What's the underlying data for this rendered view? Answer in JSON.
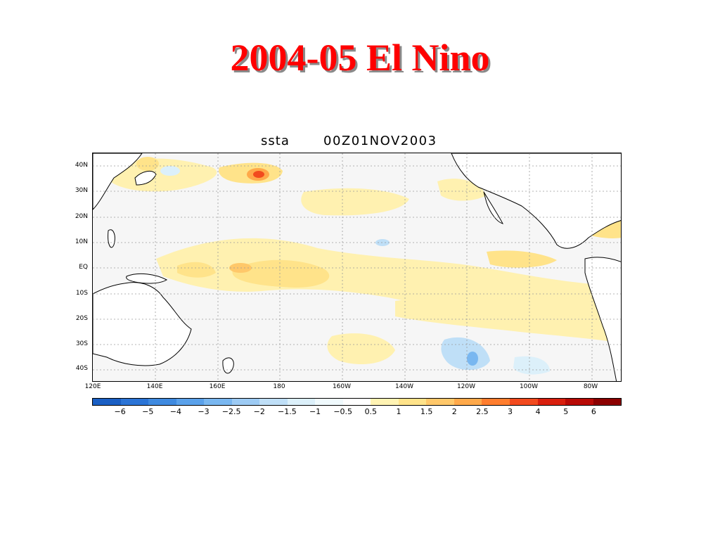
{
  "slide": {
    "title": "2004-05 El Nino"
  },
  "map": {
    "variable": "ssta",
    "valid_time": "00Z01NOV2003",
    "lat_labels": [
      "40N",
      "30N",
      "20N",
      "10N",
      "EQ",
      "10S",
      "20S",
      "30S",
      "40S"
    ],
    "lon_labels": [
      "120E",
      "140E",
      "160E",
      "180",
      "160W",
      "140W",
      "120W",
      "100W",
      "80W"
    ],
    "background_color": "#f6f6f6",
    "coastline_color": "#000000"
  },
  "colorbar": {
    "labels": [
      "-6",
      "-5",
      "-4",
      "-3",
      "-2.5",
      "-2",
      "-1.5",
      "-1",
      "-0.5",
      "0.5",
      "1",
      "1.5",
      "2",
      "2.5",
      "3",
      "4",
      "5",
      "6"
    ],
    "colors": [
      "#1a5fc4",
      "#2b74d6",
      "#3f8ae0",
      "#5aa1ea",
      "#79b7f0",
      "#9dcbf4",
      "#bfdff7",
      "#dcf0fa",
      "#f0fafd",
      "#ffffff",
      "#fff3b3",
      "#ffe38a",
      "#ffc86a",
      "#ffa94a",
      "#ff7d2e",
      "#f24a1e",
      "#d91f0e",
      "#b80a06",
      "#8c0000"
    ]
  }
}
